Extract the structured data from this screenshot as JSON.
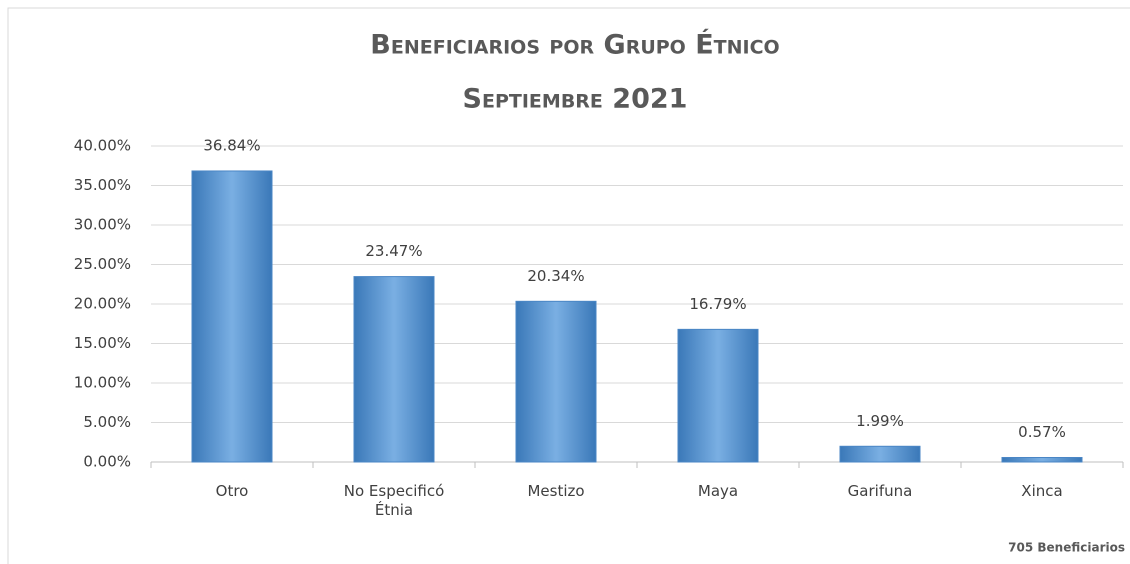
{
  "chart_data": {
    "type": "bar",
    "title": "Beneficiarios por Grupo Étnico",
    "subtitle": "Septiembre 2021",
    "categories": [
      "Otro",
      "No Especificó Étnia",
      "Mestizo",
      "Maya",
      "Garifuna",
      "Xinca"
    ],
    "values": [
      36.84,
      23.47,
      20.34,
      16.79,
      1.99,
      0.57
    ],
    "value_labels": [
      "36.84%",
      "23.47%",
      "20.34%",
      "16.79%",
      "1.99%",
      "0.57%"
    ],
    "color": "#5b9bd5",
    "ylim": [
      0,
      40
    ],
    "yticks": [
      {
        "value": 0,
        "label": "0.00%"
      },
      {
        "value": 5,
        "label": "5.00%"
      },
      {
        "value": 10,
        "label": "10.00%"
      },
      {
        "value": 15,
        "label": "15.00%"
      },
      {
        "value": 20,
        "label": "20.00%"
      },
      {
        "value": 25,
        "label": "25.00%"
      },
      {
        "value": 30,
        "label": "30.00%"
      },
      {
        "value": 35,
        "label": "35.00%"
      },
      {
        "value": 40,
        "label": "40.00%"
      }
    ],
    "grid": true,
    "annotation": "705 Beneficiarios"
  }
}
